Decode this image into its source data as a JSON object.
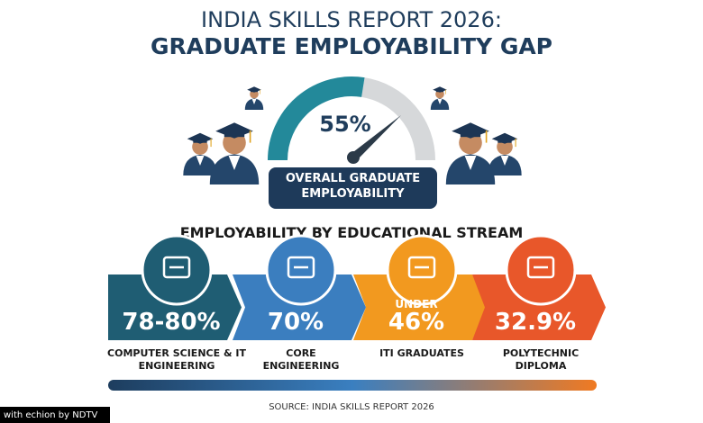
{
  "header": {
    "title": "INDIA SKILLS REPORT 2026:",
    "subtitle": "GRADUATE EMPLOYABILITY GAP"
  },
  "gauge": {
    "value": 55,
    "label": "55%",
    "caption": "OVERALL GRADUATE EMPLOYABILITY"
  },
  "section_title": "EMPLOYABILITY BY EDUCATIONAL STREAM",
  "streams": [
    {
      "value_label": "78-80%",
      "label": "COMPUTER SCIENCE & IT ENGINEERING",
      "color": "#1f5d73"
    },
    {
      "value_label": "70%",
      "label": "CORE ENGINEERING",
      "color": "#3b7ebf"
    },
    {
      "prefix": "UNDER",
      "value_label": "46%",
      "label": "ITI GRADUATES",
      "color": "#f2991f"
    },
    {
      "value_label": "32.9%",
      "label": "POLYTECHNIC DIPLOMA",
      "color": "#e8572a"
    }
  ],
  "source": "SOURCE: INDIA SKILLS REPORT 2026",
  "watermark": "with echion by NDTV"
}
